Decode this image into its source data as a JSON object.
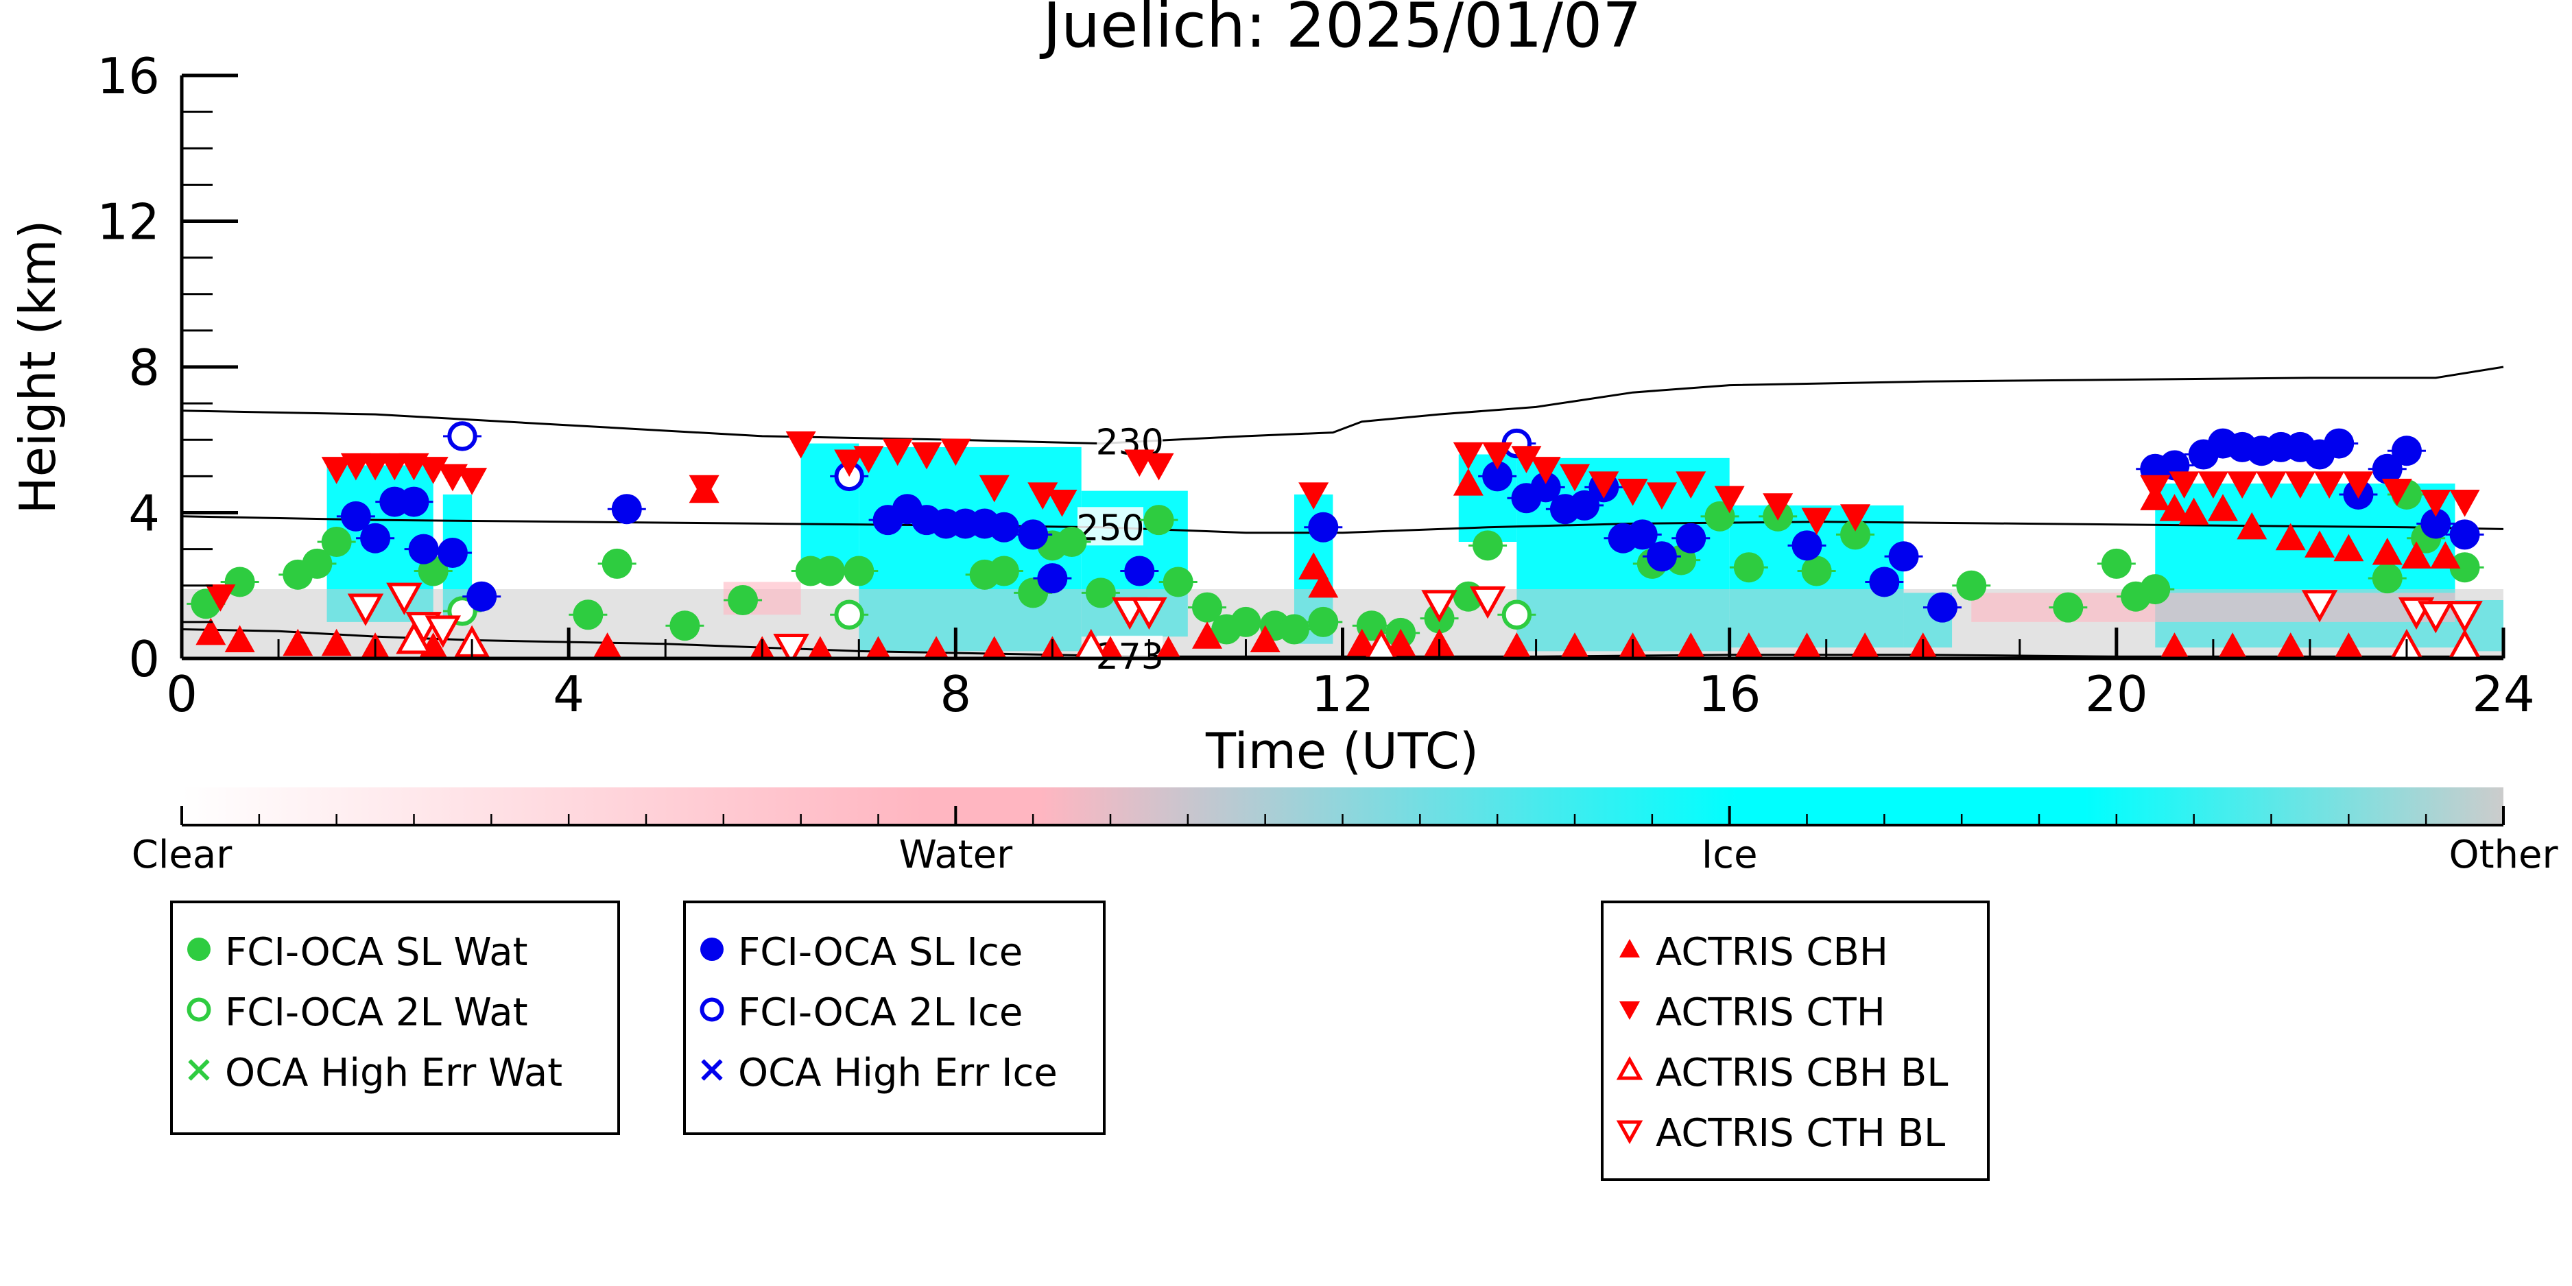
{
  "chart_data": {
    "type": "scatter",
    "title": "Juelich: 2025/01/07",
    "xlabel": "Time (UTC)",
    "ylabel": "Height (km)",
    "xlim": [
      0,
      24
    ],
    "ylim": [
      0,
      16
    ],
    "xticks": [
      0,
      4,
      8,
      12,
      16,
      20,
      24
    ],
    "yticks": [
      0,
      4,
      8,
      12,
      16
    ],
    "grid": false,
    "contours": [
      {
        "label": "230",
        "label_x": 9.8,
        "points": [
          [
            0,
            6.8
          ],
          [
            2,
            6.7
          ],
          [
            4,
            6.4
          ],
          [
            6,
            6.1
          ],
          [
            8,
            6.0
          ],
          [
            9.5,
            5.9
          ],
          [
            11,
            6.1
          ],
          [
            11.9,
            6.2
          ],
          [
            12.2,
            6.5
          ],
          [
            13,
            6.7
          ],
          [
            14,
            6.9
          ],
          [
            15,
            7.3
          ],
          [
            16,
            7.5
          ],
          [
            18,
            7.6
          ],
          [
            20,
            7.65
          ],
          [
            22,
            7.7
          ],
          [
            23.3,
            7.7
          ],
          [
            24,
            8.0
          ]
        ]
      },
      {
        "label": "250",
        "label_x": 9.6,
        "points": [
          [
            0,
            3.9
          ],
          [
            2,
            3.8
          ],
          [
            4,
            3.75
          ],
          [
            6,
            3.7
          ],
          [
            8,
            3.65
          ],
          [
            9.5,
            3.6
          ],
          [
            11,
            3.45
          ],
          [
            12,
            3.45
          ],
          [
            13.5,
            3.6
          ],
          [
            15,
            3.7
          ],
          [
            17,
            3.75
          ],
          [
            19,
            3.7
          ],
          [
            21,
            3.65
          ],
          [
            23,
            3.6
          ],
          [
            24,
            3.55
          ]
        ]
      },
      {
        "label": "273",
        "label_x": 9.8,
        "points": [
          [
            0,
            0.8
          ],
          [
            1,
            0.75
          ],
          [
            2,
            0.6
          ],
          [
            3,
            0.5
          ],
          [
            4,
            0.45
          ],
          [
            5,
            0.4
          ],
          [
            6,
            0.3
          ],
          [
            7,
            0.2
          ],
          [
            8,
            0.15
          ],
          [
            9,
            0.1
          ],
          [
            10,
            0.05
          ],
          [
            12,
            0.05
          ],
          [
            14,
            0.05
          ],
          [
            16,
            0.1
          ],
          [
            18,
            0.1
          ],
          [
            20,
            0.05
          ],
          [
            22,
            0.05
          ],
          [
            24,
            0.05
          ]
        ]
      }
    ],
    "classification_colorbar": {
      "labels": [
        "Clear",
        "Water",
        "Ice",
        "Other"
      ],
      "colors": [
        "#ffffff",
        "#ffb6c1",
        "#00ffff",
        "#cccccc"
      ]
    },
    "series": [
      {
        "name": "FCI-OCA SL Wat",
        "marker": "filled-circle",
        "color": "#2ecc40",
        "points": [
          [
            0.25,
            1.5
          ],
          [
            0.6,
            2.1
          ],
          [
            1.2,
            2.3
          ],
          [
            1.4,
            2.6
          ],
          [
            1.6,
            3.2
          ],
          [
            2.6,
            2.4
          ],
          [
            4.2,
            1.2
          ],
          [
            4.5,
            2.6
          ],
          [
            5.2,
            0.9
          ],
          [
            5.8,
            1.6
          ],
          [
            6.5,
            2.4
          ],
          [
            6.7,
            2.4
          ],
          [
            7.0,
            2.4
          ],
          [
            8.3,
            2.3
          ],
          [
            8.5,
            2.4
          ],
          [
            8.8,
            1.8
          ],
          [
            9.0,
            3.1
          ],
          [
            9.2,
            3.2
          ],
          [
            9.5,
            1.8
          ],
          [
            10.1,
            3.8
          ],
          [
            10.3,
            2.1
          ],
          [
            10.6,
            1.4
          ],
          [
            10.8,
            0.8
          ],
          [
            11.0,
            1.0
          ],
          [
            11.3,
            0.9
          ],
          [
            11.5,
            0.8
          ],
          [
            11.8,
            1.0
          ],
          [
            12.3,
            0.9
          ],
          [
            12.6,
            0.7
          ],
          [
            13.0,
            1.1
          ],
          [
            13.3,
            1.7
          ],
          [
            13.5,
            3.1
          ],
          [
            15.2,
            2.6
          ],
          [
            15.5,
            2.7
          ],
          [
            15.9,
            3.9
          ],
          [
            16.2,
            2.5
          ],
          [
            16.5,
            3.9
          ],
          [
            16.9,
            2.4
          ],
          [
            17.3,
            3.4
          ],
          [
            18.5,
            2.0
          ],
          [
            19.5,
            1.4
          ],
          [
            20.0,
            2.6
          ],
          [
            20.2,
            1.7
          ],
          [
            20.4,
            1.9
          ],
          [
            22.8,
            2.2
          ],
          [
            23.0,
            4.5
          ],
          [
            23.2,
            3.3
          ],
          [
            23.6,
            2.5
          ]
        ]
      },
      {
        "name": "FCI-OCA 2L Wat",
        "marker": "open-circle",
        "color": "#2ecc40",
        "points": [
          [
            2.9,
            1.3
          ],
          [
            6.9,
            1.2
          ],
          [
            13.8,
            1.2
          ]
        ]
      },
      {
        "name": "OCA High Err Wat",
        "marker": "x",
        "color": "#2ecc40",
        "points": []
      },
      {
        "name": "FCI-OCA SL Ice",
        "marker": "filled-circle",
        "color": "#0000ee",
        "points": [
          [
            1.8,
            3.9
          ],
          [
            2.0,
            3.3
          ],
          [
            2.2,
            4.3
          ],
          [
            2.4,
            4.3
          ],
          [
            2.5,
            3.0
          ],
          [
            2.8,
            2.9
          ],
          [
            3.1,
            1.7
          ],
          [
            4.6,
            4.1
          ],
          [
            7.3,
            3.8
          ],
          [
            7.5,
            4.1
          ],
          [
            7.7,
            3.8
          ],
          [
            7.9,
            3.7
          ],
          [
            8.1,
            3.7
          ],
          [
            8.3,
            3.7
          ],
          [
            8.5,
            3.6
          ],
          [
            8.8,
            3.4
          ],
          [
            9.0,
            2.2
          ],
          [
            9.9,
            2.4
          ],
          [
            11.8,
            3.6
          ],
          [
            13.6,
            5.0
          ],
          [
            13.9,
            4.4
          ],
          [
            14.1,
            4.7
          ],
          [
            14.3,
            4.1
          ],
          [
            14.5,
            4.2
          ],
          [
            14.7,
            4.7
          ],
          [
            14.9,
            3.3
          ],
          [
            15.1,
            3.4
          ],
          [
            15.3,
            2.8
          ],
          [
            15.6,
            3.3
          ],
          [
            16.8,
            3.1
          ],
          [
            17.6,
            2.1
          ],
          [
            17.8,
            2.8
          ],
          [
            18.2,
            1.4
          ],
          [
            20.4,
            5.2
          ],
          [
            20.6,
            5.3
          ],
          [
            20.9,
            5.6
          ],
          [
            21.1,
            5.9
          ],
          [
            21.3,
            5.8
          ],
          [
            21.5,
            5.7
          ],
          [
            21.7,
            5.8
          ],
          [
            21.9,
            5.8
          ],
          [
            22.1,
            5.6
          ],
          [
            22.3,
            5.9
          ],
          [
            22.5,
            4.5
          ],
          [
            22.8,
            5.2
          ],
          [
            23.0,
            5.7
          ],
          [
            23.3,
            3.7
          ],
          [
            23.6,
            3.4
          ]
        ]
      },
      {
        "name": "FCI-OCA 2L Ice",
        "marker": "open-circle",
        "color": "#0000ee",
        "points": [
          [
            2.9,
            6.1
          ],
          [
            6.9,
            5.0
          ],
          [
            13.8,
            5.9
          ]
        ]
      },
      {
        "name": "OCA High Err Ice",
        "marker": "x",
        "color": "#0000ee",
        "points": []
      },
      {
        "name": "ACTRIS CBH",
        "marker": "triangle-up",
        "color": "#ff0000",
        "points": [
          [
            0.3,
            0.7
          ],
          [
            0.6,
            0.5
          ],
          [
            1.2,
            0.4
          ],
          [
            1.6,
            0.4
          ],
          [
            2.0,
            0.3
          ],
          [
            2.6,
            0.3
          ],
          [
            3.0,
            0.3
          ],
          [
            4.4,
            0.3
          ],
          [
            5.4,
            4.6
          ],
          [
            6.0,
            0.2
          ],
          [
            6.6,
            0.2
          ],
          [
            7.2,
            0.2
          ],
          [
            7.8,
            0.2
          ],
          [
            8.4,
            0.2
          ],
          [
            9.0,
            0.2
          ],
          [
            9.6,
            0.2
          ],
          [
            10.2,
            0.2
          ],
          [
            10.6,
            0.6
          ],
          [
            11.2,
            0.5
          ],
          [
            11.7,
            2.5
          ],
          [
            11.8,
            2.0
          ],
          [
            12.2,
            0.4
          ],
          [
            12.6,
            0.4
          ],
          [
            13.0,
            0.4
          ],
          [
            13.3,
            4.8
          ],
          [
            13.8,
            0.3
          ],
          [
            14.4,
            0.3
          ],
          [
            15.0,
            0.3
          ],
          [
            15.6,
            0.3
          ],
          [
            16.2,
            0.3
          ],
          [
            16.8,
            0.3
          ],
          [
            17.4,
            0.3
          ],
          [
            18.0,
            0.3
          ],
          [
            20.4,
            4.4
          ],
          [
            20.6,
            4.1
          ],
          [
            20.8,
            4.0
          ],
          [
            21.1,
            4.1
          ],
          [
            21.4,
            3.6
          ],
          [
            21.8,
            3.3
          ],
          [
            22.1,
            3.1
          ],
          [
            22.4,
            3.0
          ],
          [
            22.8,
            2.9
          ],
          [
            23.1,
            2.8
          ],
          [
            23.4,
            2.8
          ],
          [
            20.6,
            0.3
          ],
          [
            21.2,
            0.3
          ],
          [
            21.8,
            0.3
          ],
          [
            22.4,
            0.3
          ],
          [
            23.0,
            0.3
          ],
          [
            23.6,
            0.3
          ]
        ]
      },
      {
        "name": "ACTRIS CTH",
        "marker": "triangle-down",
        "color": "#ff0000",
        "points": [
          [
            0.4,
            1.7
          ],
          [
            1.6,
            5.2
          ],
          [
            1.8,
            5.3
          ],
          [
            2.0,
            5.3
          ],
          [
            2.2,
            5.3
          ],
          [
            2.4,
            5.3
          ],
          [
            2.6,
            5.2
          ],
          [
            2.8,
            5.0
          ],
          [
            3.0,
            4.9
          ],
          [
            5.4,
            4.7
          ],
          [
            6.4,
            5.9
          ],
          [
            6.9,
            5.4
          ],
          [
            7.1,
            5.5
          ],
          [
            7.4,
            5.7
          ],
          [
            7.7,
            5.6
          ],
          [
            8.0,
            5.7
          ],
          [
            8.4,
            4.7
          ],
          [
            8.9,
            4.5
          ],
          [
            9.1,
            4.3
          ],
          [
            9.9,
            5.4
          ],
          [
            10.1,
            5.3
          ],
          [
            11.7,
            4.5
          ],
          [
            13.3,
            5.6
          ],
          [
            13.6,
            5.6
          ],
          [
            13.9,
            5.5
          ],
          [
            14.1,
            5.2
          ],
          [
            14.4,
            5.0
          ],
          [
            14.7,
            4.8
          ],
          [
            15.0,
            4.6
          ],
          [
            15.3,
            4.5
          ],
          [
            15.6,
            4.8
          ],
          [
            16.0,
            4.4
          ],
          [
            16.5,
            4.2
          ],
          [
            16.9,
            3.8
          ],
          [
            17.3,
            3.9
          ],
          [
            20.4,
            4.7
          ],
          [
            20.7,
            4.8
          ],
          [
            21.0,
            4.8
          ],
          [
            21.3,
            4.8
          ],
          [
            21.6,
            4.8
          ],
          [
            21.9,
            4.8
          ],
          [
            22.2,
            4.8
          ],
          [
            22.5,
            4.8
          ],
          [
            22.9,
            4.6
          ],
          [
            23.3,
            4.3
          ],
          [
            23.6,
            4.3
          ]
        ]
      },
      {
        "name": "ACTRIS CBH BL",
        "marker": "open-triangle-up",
        "color": "#ff0000",
        "points": [
          [
            2.4,
            0.5
          ],
          [
            3.0,
            0.4
          ],
          [
            9.4,
            0.3
          ],
          [
            12.4,
            0.3
          ],
          [
            23.0,
            0.3
          ],
          [
            23.6,
            0.3
          ]
        ]
      },
      {
        "name": "ACTRIS CTH BL",
        "marker": "open-triangle-down",
        "color": "#ff0000",
        "points": [
          [
            1.9,
            1.4
          ],
          [
            2.3,
            1.7
          ],
          [
            2.5,
            0.9
          ],
          [
            2.7,
            0.8
          ],
          [
            6.3,
            0.3
          ],
          [
            9.8,
            1.3
          ],
          [
            10.0,
            1.3
          ],
          [
            13.0,
            1.5
          ],
          [
            13.5,
            1.6
          ],
          [
            22.1,
            1.5
          ],
          [
            23.1,
            1.3
          ],
          [
            23.3,
            1.2
          ],
          [
            23.6,
            1.2
          ]
        ]
      }
    ],
    "legends": [
      {
        "placement": "bottom-left",
        "entries": [
          "FCI-OCA SL Wat",
          "FCI-OCA 2L Wat",
          "OCA High Err Wat"
        ]
      },
      {
        "placement": "bottom-center-left",
        "entries": [
          "FCI-OCA SL Ice",
          "FCI-OCA 2L Ice",
          "OCA High Err Ice"
        ]
      },
      {
        "placement": "bottom-right",
        "entries": [
          "ACTRIS CBH",
          "ACTRIS CTH",
          "ACTRIS CBH BL",
          "ACTRIS CTH BL"
        ]
      }
    ]
  }
}
